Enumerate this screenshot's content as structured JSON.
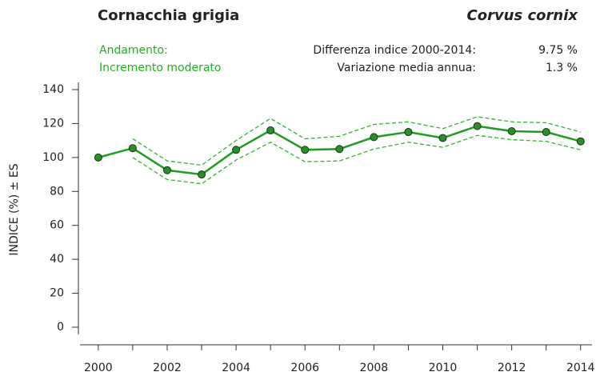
{
  "chart_data": {
    "type": "line",
    "title": "Cornacchia grigia",
    "species": "Corvus cornix",
    "trend_label": "Andamento:",
    "trend_value": "Incremento moderato",
    "diff_label": "Differenza indice 2000-2014:",
    "diff_value": "9.75 %",
    "mean_label": "Variazione media annua:",
    "mean_value": "1.3 %",
    "ylabel": "INDICE (%) ± ES",
    "x": [
      2000,
      2001,
      2002,
      2003,
      2004,
      2005,
      2006,
      2007,
      2008,
      2009,
      2010,
      2011,
      2012,
      2013,
      2014
    ],
    "series": [
      {
        "name": "Indice",
        "color": "#1e9e1e",
        "values": [
          100,
          105.5,
          92.5,
          90,
          104.5,
          116,
          104.5,
          105,
          112,
          115,
          111.5,
          118.5,
          115.5,
          115,
          109.5
        ]
      },
      {
        "name": "Indice + ES",
        "color": "#2cb82c",
        "values": [
          null,
          111,
          98,
          95.5,
          110,
          123,
          111,
          112.5,
          119.5,
          121,
          117,
          124,
          121,
          120.5,
          115
        ]
      },
      {
        "name": "Indice - ES",
        "color": "#2cb82c",
        "values": [
          null,
          100,
          87,
          84.5,
          98.5,
          109,
          97.5,
          98,
          105,
          109,
          106,
          113,
          110.5,
          109.5,
          104.5
        ]
      }
    ],
    "marker_color": "#2e8b2e",
    "xlim": [
      1999.47,
      2014.33
    ],
    "xticks": [
      2000,
      2002,
      2004,
      2006,
      2008,
      2010,
      2012,
      2014
    ],
    "xminorticks": [
      2001,
      2003,
      2005,
      2007,
      2009,
      2011,
      2013
    ],
    "ylim": [
      0,
      140
    ],
    "yticks": [
      0,
      20,
      40,
      60,
      80,
      100,
      120,
      140
    ]
  }
}
